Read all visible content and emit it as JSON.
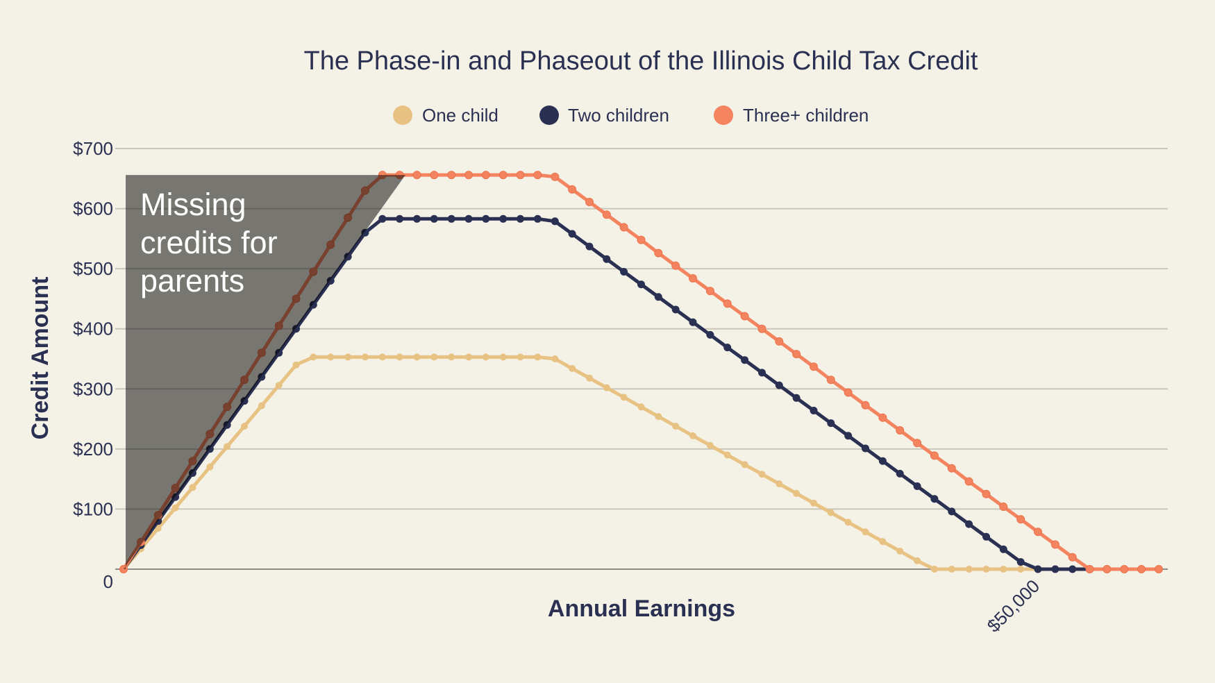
{
  "chart_data": {
    "type": "line",
    "title": "The Phase-in and Phaseout of the Illinois Child Tax Credit",
    "xlabel": "Annual Earnings",
    "ylabel": "Credit Amount",
    "xlim": [
      -456,
      57098
    ],
    "ylim": [
      0,
      700
    ],
    "grid": true,
    "legend": "top-center",
    "y_ticks": [
      {
        "value": 0,
        "label": "0"
      },
      {
        "value": 100,
        "label": "$100"
      },
      {
        "value": 200,
        "label": "$200"
      },
      {
        "value": 300,
        "label": "$300"
      },
      {
        "value": 400,
        "label": "$400"
      },
      {
        "value": 500,
        "label": "$500"
      },
      {
        "value": 600,
        "label": "$600"
      },
      {
        "value": 700,
        "label": "$700"
      }
    ],
    "x_ticks": [
      {
        "value": 50000,
        "label": "$50,000"
      }
    ],
    "x": [
      0,
      943,
      1887,
      2830,
      3774,
      4717,
      5660,
      6604,
      7547,
      8491,
      9434,
      10377,
      11321,
      12264,
      13208,
      14151,
      15094,
      16038,
      16981,
      17925,
      18868,
      19811,
      20755,
      21698,
      22642,
      23585,
      24528,
      25472,
      26415,
      27358,
      28302,
      29245,
      30189,
      31132,
      32075,
      33019,
      33962,
      34906,
      35849,
      36792,
      37736,
      38679,
      39623,
      40566,
      41509,
      42453,
      43396,
      44340,
      45283,
      46226,
      47170,
      48113,
      49057,
      50000,
      50943,
      51887,
      52830,
      53774,
      54717,
      55660,
      56604
    ],
    "series": [
      {
        "name": "One child",
        "color": "#e8c283",
        "values": [
          0,
          34,
          68,
          102,
          136,
          170,
          204,
          238,
          272,
          306,
          340,
          353,
          353,
          353,
          353,
          353,
          353,
          353,
          353,
          353,
          353,
          353,
          353,
          353,
          353,
          350,
          334,
          318,
          302,
          286,
          270,
          254,
          238,
          222,
          206,
          190,
          174,
          158,
          142,
          126,
          110,
          94,
          78,
          62,
          46,
          30,
          14,
          0,
          0,
          0,
          0,
          0,
          0,
          0,
          0,
          0,
          0,
          0,
          0,
          0,
          0
        ]
      },
      {
        "name": "Two children",
        "color": "#2a3052",
        "values": [
          0,
          40,
          80,
          120,
          160,
          200,
          240,
          280,
          320,
          360,
          400,
          440,
          480,
          520,
          560,
          583,
          583,
          583,
          583,
          583,
          583,
          583,
          583,
          583,
          583,
          579,
          558,
          537,
          516,
          495,
          474,
          453,
          432,
          411,
          390,
          369,
          348,
          327,
          306,
          285,
          264,
          243,
          222,
          201,
          180,
          159,
          138,
          117,
          96,
          75,
          54,
          33,
          12,
          0,
          0,
          0,
          0,
          0,
          0,
          0,
          0
        ]
      },
      {
        "name": "Three+ children",
        "color": "#f4845f",
        "values": [
          0,
          45,
          90,
          135,
          180,
          225,
          270,
          315,
          360,
          405,
          450,
          495,
          540,
          585,
          630,
          656,
          656,
          656,
          656,
          656,
          656,
          656,
          656,
          656,
          656,
          653,
          632,
          611,
          590,
          569,
          548,
          526,
          505,
          484,
          463,
          442,
          421,
          400,
          379,
          358,
          337,
          315,
          294,
          273,
          252,
          231,
          210,
          189,
          168,
          146,
          125,
          104,
          83,
          62,
          41,
          20,
          0,
          0,
          0,
          0,
          0
        ]
      }
    ],
    "annotations": [
      {
        "text_lines": [
          "Missing",
          "credits for",
          "parents"
        ],
        "region_polygon": [
          [
            114,
            0
          ],
          [
            114,
            656
          ],
          [
            15414,
            656
          ],
          [
            0,
            0
          ]
        ]
      }
    ]
  },
  "colors": {
    "background": "#f4f1e6",
    "text": "#2a3052"
  }
}
